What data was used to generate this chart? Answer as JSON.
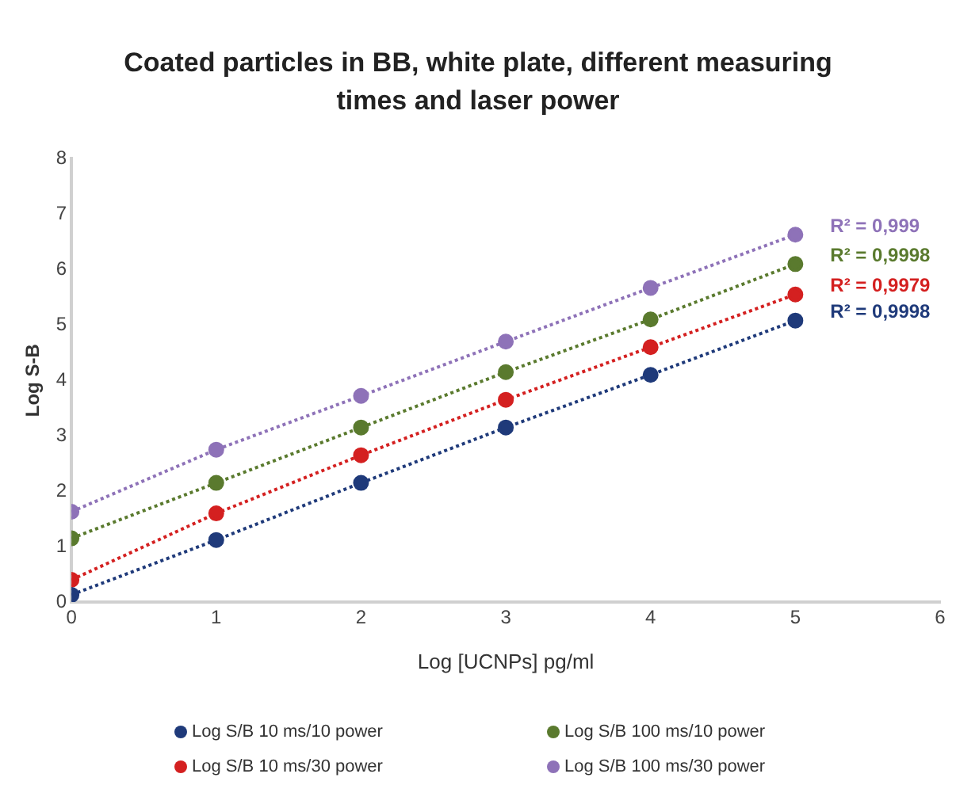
{
  "chart_data": {
    "type": "line",
    "title": "Coated particles in BB, white plate, different measuring times and laser power",
    "xlabel": "Log [UCNPs] pg/ml",
    "ylabel": "Log S-B",
    "x": [
      0,
      1,
      2,
      3,
      4,
      5
    ],
    "series": [
      {
        "name": "Log S/B 10 ms/10 power",
        "color": "#1f3a7a",
        "values": [
          0.13,
          1.12,
          2.15,
          3.15,
          4.1,
          5.08
        ]
      },
      {
        "name": "Log S/B 100 ms/10 power",
        "color": "#5a7a2e",
        "values": [
          1.15,
          2.15,
          3.15,
          4.15,
          5.1,
          6.1
        ]
      },
      {
        "name": "Log S/B 10 ms/30 power",
        "color": "#d42020",
        "values": [
          0.4,
          1.6,
          2.65,
          3.65,
          4.6,
          5.55
        ]
      },
      {
        "name": "Log S/B 100 ms/30 power",
        "color": "#8e72b8",
        "values": [
          1.63,
          2.75,
          3.72,
          4.7,
          5.67,
          6.63
        ]
      }
    ],
    "annotations": [
      "R² = 0,999",
      "R² = 0,9998",
      "R² = 0,9979",
      "R² = 0,9998"
    ],
    "xlim": [
      0,
      6
    ],
    "xticks": [
      0,
      1,
      2,
      3,
      4,
      5,
      6
    ],
    "ylim": [
      0,
      8
    ],
    "yticks": [
      0,
      1,
      2,
      3,
      4,
      5,
      6,
      7,
      8
    ],
    "grid": false,
    "legend": "bottom",
    "marker": "circle",
    "line_style": "dotted"
  }
}
